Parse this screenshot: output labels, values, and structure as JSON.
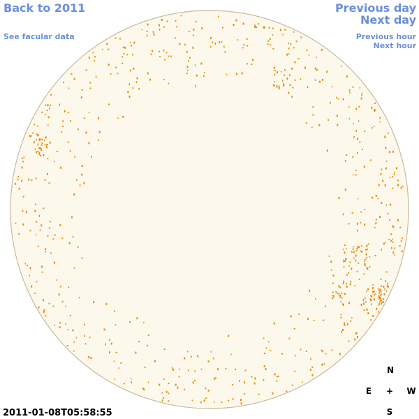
{
  "nav": {
    "back": "Back to 2011",
    "facular": "See facular data",
    "previous_day": "Previous day",
    "next_day": "Next day",
    "previous_hour": "Previous hour",
    "next_hour": "Next hour"
  },
  "timestamp": "2011-01-08T05:58:55",
  "compass": {
    "north": "N",
    "east": "E",
    "center": "+",
    "west": "W",
    "south": "S"
  }
}
